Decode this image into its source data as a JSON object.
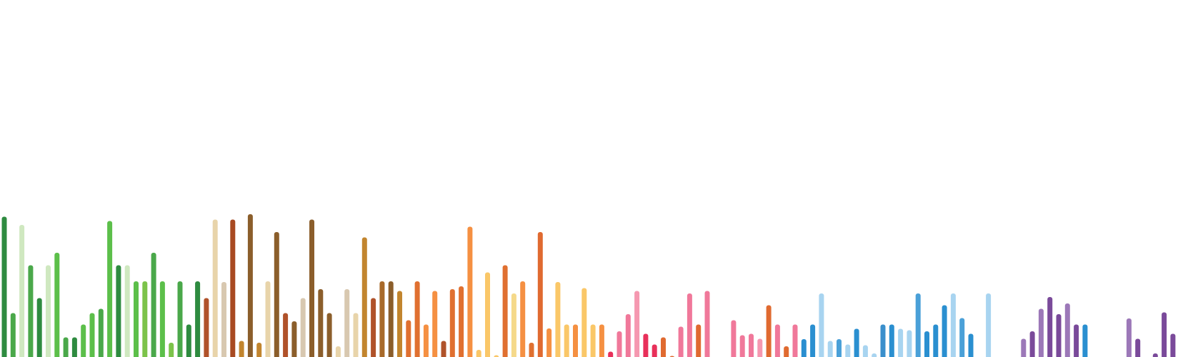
{
  "chart_data": {
    "type": "bar",
    "title": "",
    "xlabel": "",
    "ylabel": "",
    "ylim": [
      0,
      1000
    ],
    "grid": false,
    "legend": "none",
    "bars": [
      {
        "value": 393,
        "color": "#2e8b40"
      },
      {
        "value": 123,
        "color": "#4aa84a"
      },
      {
        "value": 370,
        "color": "#cfe8c0"
      },
      {
        "value": 257,
        "color": "#4aa84a"
      },
      {
        "value": 165,
        "color": "#2e8b40"
      },
      {
        "value": 257,
        "color": "#cfe8c0"
      },
      {
        "value": 292,
        "color": "#5cbf4a"
      },
      {
        "value": 55,
        "color": "#4aa84a"
      },
      {
        "value": 55,
        "color": "#2e8b40"
      },
      {
        "value": 91,
        "color": "#5cbf4a"
      },
      {
        "value": 123,
        "color": "#5cbf4a"
      },
      {
        "value": 135,
        "color": "#4aa84a"
      },
      {
        "value": 381,
        "color": "#5cbf4a"
      },
      {
        "value": 257,
        "color": "#2e8b40"
      },
      {
        "value": 257,
        "color": "#cfe8c0"
      },
      {
        "value": 212,
        "color": "#5cbf4a"
      },
      {
        "value": 212,
        "color": "#7cc34a"
      },
      {
        "value": 292,
        "color": "#4aa84a"
      },
      {
        "value": 212,
        "color": "#5cbf4a"
      },
      {
        "value": 40,
        "color": "#7cc34a"
      },
      {
        "value": 212,
        "color": "#4aa84a"
      },
      {
        "value": 91,
        "color": "#2e8b40"
      },
      {
        "value": 212,
        "color": "#2e8b40"
      },
      {
        "value": 165,
        "color": "#b0522a"
      },
      {
        "value": 385,
        "color": "#e8d4aa"
      },
      {
        "value": 210,
        "color": "#d8c8b0"
      },
      {
        "value": 385,
        "color": "#a84a22"
      },
      {
        "value": 45,
        "color": "#c2852e"
      },
      {
        "value": 400,
        "color": "#8b5e2b"
      },
      {
        "value": 40,
        "color": "#c2852e"
      },
      {
        "value": 212,
        "color": "#e8d4aa"
      },
      {
        "value": 350,
        "color": "#8b5e2b"
      },
      {
        "value": 123,
        "color": "#b0522a"
      },
      {
        "value": 100,
        "color": "#8b5e2b"
      },
      {
        "value": 165,
        "color": "#d8c8b0"
      },
      {
        "value": 385,
        "color": "#8b5e2b"
      },
      {
        "value": 190,
        "color": "#8b5e2b"
      },
      {
        "value": 123,
        "color": "#8b5e2b"
      },
      {
        "value": 30,
        "color": "#e8d4aa"
      },
      {
        "value": 190,
        "color": "#d8c8b0"
      },
      {
        "value": 123,
        "color": "#e8d4aa"
      },
      {
        "value": 335,
        "color": "#c2852e"
      },
      {
        "value": 165,
        "color": "#b0522a"
      },
      {
        "value": 212,
        "color": "#a86a2a"
      },
      {
        "value": 212,
        "color": "#8b5e2b"
      },
      {
        "value": 185,
        "color": "#c2852e"
      },
      {
        "value": 103,
        "color": "#e07030"
      },
      {
        "value": 212,
        "color": "#e07030"
      },
      {
        "value": 91,
        "color": "#f59042"
      },
      {
        "value": 185,
        "color": "#f59042"
      },
      {
        "value": 45,
        "color": "#b0522a"
      },
      {
        "value": 190,
        "color": "#e07030"
      },
      {
        "value": 198,
        "color": "#e07030"
      },
      {
        "value": 365,
        "color": "#f59042"
      },
      {
        "value": 20,
        "color": "#fac768"
      },
      {
        "value": 237,
        "color": "#fac768"
      },
      {
        "value": 5,
        "color": "#fac768"
      },
      {
        "value": 257,
        "color": "#e07030"
      },
      {
        "value": 178,
        "color": "#f5d98a"
      },
      {
        "value": 212,
        "color": "#f59042"
      },
      {
        "value": 40,
        "color": "#e07030"
      },
      {
        "value": 350,
        "color": "#e06a30"
      },
      {
        "value": 80,
        "color": "#f59042"
      },
      {
        "value": 210,
        "color": "#fac768"
      },
      {
        "value": 91,
        "color": "#fac768"
      },
      {
        "value": 91,
        "color": "#f59042"
      },
      {
        "value": 193,
        "color": "#fac768"
      },
      {
        "value": 91,
        "color": "#fac768"
      },
      {
        "value": 91,
        "color": "#f59042"
      },
      {
        "value": 15,
        "color": "#e8305a"
      },
      {
        "value": 72,
        "color": "#f0789a"
      },
      {
        "value": 120,
        "color": "#f0789a"
      },
      {
        "value": 185,
        "color": "#f598b0"
      },
      {
        "value": 65,
        "color": "#e8305a"
      },
      {
        "value": 35,
        "color": "#e8305a"
      },
      {
        "value": 55,
        "color": "#e06a30"
      },
      {
        "value": 3,
        "color": "#e06a30"
      },
      {
        "value": 85,
        "color": "#f0789a"
      },
      {
        "value": 178,
        "color": "#f0789a"
      },
      {
        "value": 91,
        "color": "#e06a30"
      },
      {
        "value": 185,
        "color": "#f0789a"
      },
      {
        "value": 0,
        "color": "#ffffff"
      },
      {
        "value": 0,
        "color": "#ffffff"
      },
      {
        "value": 103,
        "color": "#f0789a"
      },
      {
        "value": 61,
        "color": "#f0789a"
      },
      {
        "value": 65,
        "color": "#f0789a"
      },
      {
        "value": 51,
        "color": "#f598b0"
      },
      {
        "value": 145,
        "color": "#e06a30"
      },
      {
        "value": 91,
        "color": "#f0789a"
      },
      {
        "value": 30,
        "color": "#e06a30"
      },
      {
        "value": 91,
        "color": "#f0789a"
      },
      {
        "value": 50,
        "color": "#2a8fd0"
      },
      {
        "value": 91,
        "color": "#2a8fd0"
      },
      {
        "value": 178,
        "color": "#a8d4f0"
      },
      {
        "value": 45,
        "color": "#a8d4f0"
      },
      {
        "value": 50,
        "color": "#4aa0d8"
      },
      {
        "value": 35,
        "color": "#a8d4f0"
      },
      {
        "value": 79,
        "color": "#2a8fd0"
      },
      {
        "value": 33,
        "color": "#a8d4f0"
      },
      {
        "value": 10,
        "color": "#a8d4f0"
      },
      {
        "value": 91,
        "color": "#3a8fcc"
      },
      {
        "value": 91,
        "color": "#2a8fd0"
      },
      {
        "value": 79,
        "color": "#a8d4f0"
      },
      {
        "value": 75,
        "color": "#a8d4f0"
      },
      {
        "value": 178,
        "color": "#4aa0d8"
      },
      {
        "value": 72,
        "color": "#2a8fd0"
      },
      {
        "value": 91,
        "color": "#2a8fd0"
      },
      {
        "value": 145,
        "color": "#2a8fd0"
      },
      {
        "value": 178,
        "color": "#a8d4f0"
      },
      {
        "value": 109,
        "color": "#4aa0d8"
      },
      {
        "value": 65,
        "color": "#2a8fd0"
      },
      {
        "value": 0,
        "color": "#ffffff"
      },
      {
        "value": 178,
        "color": "#a8d4f0"
      },
      {
        "value": 0,
        "color": "#ffffff"
      },
      {
        "value": 0,
        "color": "#ffffff"
      },
      {
        "value": 0,
        "color": "#ffffff"
      },
      {
        "value": 51,
        "color": "#9c78b8"
      },
      {
        "value": 72,
        "color": "#7a4a9a"
      },
      {
        "value": 135,
        "color": "#9c78b8"
      },
      {
        "value": 168,
        "color": "#7a4a9a"
      },
      {
        "value": 120,
        "color": "#7a4a9a"
      },
      {
        "value": 150,
        "color": "#9c78b8"
      },
      {
        "value": 91,
        "color": "#7a4a9a"
      },
      {
        "value": 91,
        "color": "#2a8fd0"
      },
      {
        "value": 0,
        "color": "#ffffff"
      },
      {
        "value": 0,
        "color": "#ffffff"
      },
      {
        "value": 0,
        "color": "#ffffff"
      },
      {
        "value": 0,
        "color": "#ffffff"
      },
      {
        "value": 108,
        "color": "#9c78b8"
      },
      {
        "value": 51,
        "color": "#7a4a9a"
      },
      {
        "value": 0,
        "color": "#ffffff"
      },
      {
        "value": 10,
        "color": "#7a4a9a"
      },
      {
        "value": 125,
        "color": "#7a4a9a"
      },
      {
        "value": 65,
        "color": "#7a4a9a"
      }
    ]
  }
}
